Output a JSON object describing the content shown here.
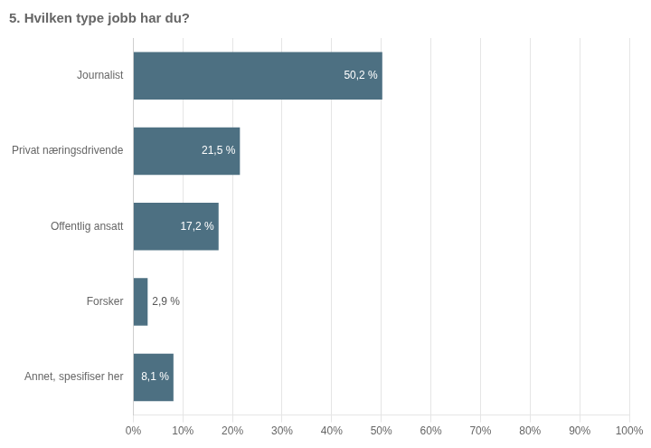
{
  "chart_data": {
    "type": "bar",
    "orientation": "horizontal",
    "title": "5. Hvilken type jobb har du?",
    "categories": [
      "Journalist",
      "Privat næringsdrivende",
      "Offentlig ansatt",
      "Forsker",
      "Annet, spesifiser her"
    ],
    "values": [
      50.2,
      21.5,
      17.2,
      2.9,
      8.1
    ],
    "value_labels": [
      "50,2 %",
      "21,5 %",
      "17,2 %",
      "2,9 %",
      "8,1 %"
    ],
    "data_labels": true,
    "color": "#4d7082",
    "xlim": [
      0,
      100
    ],
    "xticks": [
      {
        "value": 0,
        "label": "0%"
      },
      {
        "value": 10,
        "label": "10%"
      },
      {
        "value": 20,
        "label": "20%"
      },
      {
        "value": 30,
        "label": "30%"
      },
      {
        "value": 40,
        "label": "40%"
      },
      {
        "value": 50,
        "label": "50%"
      },
      {
        "value": 60,
        "label": "60%"
      },
      {
        "value": 70,
        "label": "70%"
      },
      {
        "value": 80,
        "label": "80%"
      },
      {
        "value": 90,
        "label": "90%"
      },
      {
        "value": 100,
        "label": "100%"
      }
    ],
    "grid": true
  }
}
